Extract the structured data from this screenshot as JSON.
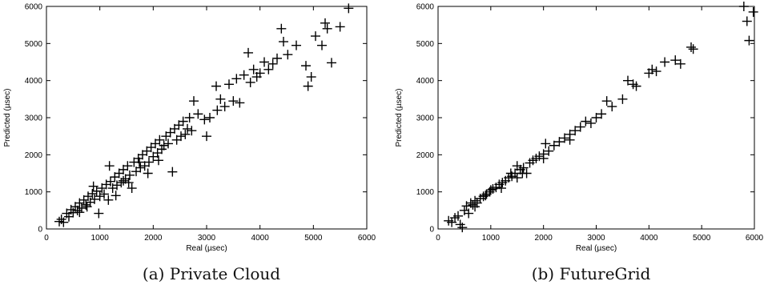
{
  "chart_data": [
    {
      "type": "scatter",
      "caption": "(a) Private Cloud",
      "xlabel": "Real (µsec)",
      "ylabel": "Predicted (µsec)",
      "xlim": [
        0,
        6000
      ],
      "ylim": [
        0,
        6000
      ],
      "xticks": [
        0,
        1000,
        2000,
        3000,
        4000,
        5000,
        6000
      ],
      "yticks": [
        0,
        1000,
        2000,
        3000,
        4000,
        5000,
        6000
      ],
      "marker": "+",
      "points": [
        [
          240,
          200
        ],
        [
          280,
          260
        ],
        [
          320,
          180
        ],
        [
          380,
          420
        ],
        [
          420,
          330
        ],
        [
          460,
          520
        ],
        [
          500,
          440
        ],
        [
          540,
          600
        ],
        [
          580,
          500
        ],
        [
          620,
          700
        ],
        [
          660,
          560
        ],
        [
          700,
          780
        ],
        [
          740,
          650
        ],
        [
          780,
          880
        ],
        [
          820,
          720
        ],
        [
          860,
          950
        ],
        [
          900,
          800
        ],
        [
          940,
          1020
        ],
        [
          980,
          420
        ],
        [
          1000,
          880
        ],
        [
          1040,
          1100
        ],
        [
          1080,
          940
        ],
        [
          1120,
          1200
        ],
        [
          1160,
          780
        ],
        [
          1200,
          1280
        ],
        [
          1240,
          1100
        ],
        [
          1280,
          1400
        ],
        [
          1320,
          1180
        ],
        [
          1360,
          1500
        ],
        [
          1400,
          1250
        ],
        [
          1440,
          1600
        ],
        [
          1480,
          1350
        ],
        [
          1520,
          1700
        ],
        [
          1560,
          1450
        ],
        [
          1600,
          1100
        ],
        [
          1640,
          1800
        ],
        [
          1680,
          1550
        ],
        [
          1720,
          1900
        ],
        [
          1760,
          1650
        ],
        [
          1800,
          2000
        ],
        [
          1840,
          1700
        ],
        [
          1880,
          2100
        ],
        [
          1920,
          1800
        ],
        [
          1960,
          2200
        ],
        [
          2000,
          1950
        ],
        [
          2040,
          2300
        ],
        [
          2080,
          2050
        ],
        [
          2120,
          2400
        ],
        [
          2160,
          2150
        ],
        [
          2200,
          2250
        ],
        [
          2240,
          2500
        ],
        [
          2280,
          2300
        ],
        [
          2320,
          2600
        ],
        [
          2360,
          1540
        ],
        [
          2400,
          2700
        ],
        [
          2440,
          2400
        ],
        [
          2480,
          2800
        ],
        [
          2520,
          2500
        ],
        [
          2560,
          2900
        ],
        [
          2600,
          2550
        ],
        [
          2680,
          3000
        ],
        [
          2720,
          2650
        ],
        [
          2760,
          3450
        ],
        [
          2840,
          3100
        ],
        [
          2960,
          2950
        ],
        [
          3000,
          2500
        ],
        [
          3060,
          3000
        ],
        [
          3180,
          3850
        ],
        [
          3260,
          3500
        ],
        [
          3340,
          3300
        ],
        [
          3420,
          3900
        ],
        [
          3500,
          3450
        ],
        [
          3560,
          4050
        ],
        [
          3620,
          3400
        ],
        [
          3700,
          4150
        ],
        [
          3780,
          4750
        ],
        [
          3820,
          3950
        ],
        [
          3880,
          4300
        ],
        [
          3940,
          4100
        ],
        [
          4000,
          4200
        ],
        [
          4080,
          4500
        ],
        [
          4160,
          4300
        ],
        [
          4240,
          4450
        ],
        [
          4320,
          4600
        ],
        [
          4400,
          5400
        ],
        [
          4440,
          5050
        ],
        [
          4520,
          4700
        ],
        [
          4680,
          4950
        ],
        [
          4860,
          4400
        ],
        [
          4900,
          3850
        ],
        [
          4960,
          4100
        ],
        [
          5040,
          5200
        ],
        [
          5160,
          4950
        ],
        [
          5220,
          5550
        ],
        [
          5260,
          5400
        ],
        [
          5340,
          4480
        ],
        [
          5500,
          5450
        ],
        [
          5660,
          5950
        ],
        [
          1180,
          1700
        ],
        [
          1300,
          900
        ],
        [
          1540,
          1250
        ],
        [
          1900,
          1500
        ],
        [
          2100,
          1850
        ],
        [
          2640,
          2700
        ],
        [
          3200,
          3200
        ],
        [
          1740,
          1800
        ],
        [
          880,
          1150
        ],
        [
          760,
          600
        ],
        [
          620,
          450
        ],
        [
          1440,
          1300
        ]
      ]
    },
    {
      "type": "scatter",
      "caption": "(b) FutureGrid",
      "xlabel": "Real (µsec)",
      "ylabel": "Predicted (µsec)",
      "xlim": [
        0,
        6000
      ],
      "ylim": [
        0,
        6000
      ],
      "xticks": [
        0,
        1000,
        2000,
        3000,
        4000,
        5000,
        6000
      ],
      "yticks": [
        0,
        1000,
        2000,
        3000,
        4000,
        5000,
        6000
      ],
      "marker": "+",
      "points": [
        [
          200,
          220
        ],
        [
          260,
          180
        ],
        [
          320,
          300
        ],
        [
          380,
          350
        ],
        [
          420,
          120
        ],
        [
          460,
          40
        ],
        [
          500,
          500
        ],
        [
          540,
          620
        ],
        [
          580,
          420
        ],
        [
          620,
          700
        ],
        [
          660,
          650
        ],
        [
          700,
          760
        ],
        [
          740,
          700
        ],
        [
          800,
          820
        ],
        [
          860,
          880
        ],
        [
          920,
          940
        ],
        [
          980,
          1000
        ],
        [
          1040,
          1080
        ],
        [
          1100,
          1120
        ],
        [
          1160,
          1200
        ],
        [
          1220,
          1250
        ],
        [
          1280,
          1300
        ],
        [
          1340,
          1380
        ],
        [
          1400,
          1420
        ],
        [
          1460,
          1500
        ],
        [
          1500,
          1700
        ],
        [
          1560,
          1600
        ],
        [
          1620,
          1650
        ],
        [
          1680,
          1500
        ],
        [
          1740,
          1780
        ],
        [
          1800,
          1850
        ],
        [
          1860,
          1900
        ],
        [
          1920,
          1960
        ],
        [
          2000,
          2020
        ],
        [
          2040,
          2300
        ],
        [
          2100,
          2100
        ],
        [
          2200,
          2250
        ],
        [
          2300,
          2350
        ],
        [
          2400,
          2450
        ],
        [
          2500,
          2550
        ],
        [
          2600,
          2650
        ],
        [
          2700,
          2750
        ],
        [
          2800,
          2900
        ],
        [
          3000,
          3000
        ],
        [
          3100,
          3100
        ],
        [
          3200,
          3450
        ],
        [
          3300,
          3300
        ],
        [
          3500,
          3500
        ],
        [
          3600,
          4000
        ],
        [
          3700,
          3900
        ],
        [
          3760,
          3850
        ],
        [
          4000,
          4200
        ],
        [
          4060,
          4300
        ],
        [
          4140,
          4250
        ],
        [
          4300,
          4500
        ],
        [
          4500,
          4550
        ],
        [
          4600,
          4450
        ],
        [
          4800,
          4900
        ],
        [
          4840,
          4850
        ],
        [
          5800,
          6000
        ],
        [
          5860,
          5600
        ],
        [
          5900,
          5080
        ],
        [
          5980,
          5850
        ],
        [
          1200,
          1100
        ],
        [
          1380,
          1500
        ],
        [
          900,
          900
        ],
        [
          1000,
          1050
        ],
        [
          2900,
          2850
        ],
        [
          2500,
          2400
        ],
        [
          1600,
          1500
        ],
        [
          700,
          600
        ],
        [
          1500,
          1380
        ],
        [
          2000,
          1900
        ]
      ]
    }
  ]
}
